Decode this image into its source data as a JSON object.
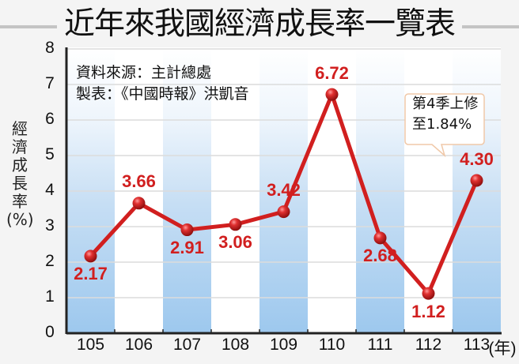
{
  "title": "近年來我國經濟成長率一覽表",
  "source": {
    "line1": "資料來源：主計總處",
    "line2": "製表：《中國時報》洪凱音"
  },
  "ylabel": [
    "經",
    "濟",
    "成",
    "長",
    "率",
    "(%)"
  ],
  "xunit": "(年)",
  "callout": {
    "line1": "第4季上修",
    "line2": "至1.84%"
  },
  "colors": {
    "line": "#d11f1f",
    "column_blue": "#a9cff0",
    "grid": "#d8d8d8",
    "axis": "#222222"
  },
  "yticks": [
    "0",
    "1",
    "2",
    "3",
    "4",
    "5",
    "6",
    "7",
    "8"
  ],
  "chart_data": {
    "type": "line",
    "title": "近年來我國經濟成長率一覽表",
    "xlabel": "(年)",
    "ylabel": "經濟成長率(%)",
    "categories": [
      "105",
      "106",
      "107",
      "108",
      "109",
      "110",
      "111",
      "112",
      "113"
    ],
    "values": [
      2.17,
      3.66,
      2.91,
      3.06,
      3.42,
      6.72,
      2.68,
      1.12,
      4.3
    ],
    "labels": [
      "2.17",
      "3.66",
      "2.91",
      "3.06",
      "3.42",
      "6.72",
      "2.68",
      "1.12",
      "4.30"
    ],
    "ylim": [
      0,
      8
    ],
    "yticks": [
      0,
      1,
      2,
      3,
      4,
      5,
      6,
      7,
      8
    ],
    "grid": true,
    "annotations": [
      {
        "x": "113",
        "text": "第4季上修至1.84%"
      },
      {
        "text": "資料來源：主計總處"
      },
      {
        "text": "製表：《中國時報》洪凱音"
      }
    ]
  }
}
